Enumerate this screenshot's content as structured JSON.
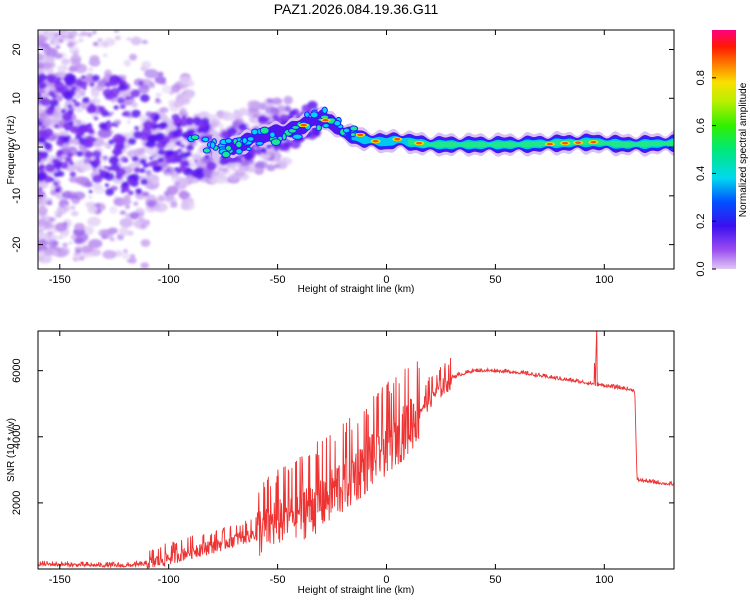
{
  "chart_data": [
    {
      "type": "heatmap",
      "title": "PAZ1.2026.084.19.36.G11",
      "xlabel": "Height of straight line (km)",
      "ylabel": "Frequency (Hz)",
      "xlim": [
        -160,
        132
      ],
      "ylim": [
        -25,
        24
      ],
      "xticks": [
        -150,
        -100,
        -50,
        0,
        50,
        100
      ],
      "yticks": [
        -20,
        -10,
        0,
        10,
        20
      ],
      "colorbar": {
        "label": "Normalized spectral amplitude",
        "range": [
          0,
          1
        ],
        "ticks": [
          "0.0",
          "0.2",
          "0.4",
          "0.6",
          "0.8"
        ],
        "colormap": "hsv-rainbow (violet to red)"
      },
      "ridge": [
        {
          "x": -150,
          "y": 3
        },
        {
          "x": -120,
          "y": 2
        },
        {
          "x": -100,
          "y": 1
        },
        {
          "x": -85,
          "y": 0
        },
        {
          "x": -70,
          "y": 0
        },
        {
          "x": -60,
          "y": 2
        },
        {
          "x": -50,
          "y": 3
        },
        {
          "x": -40,
          "y": 4
        },
        {
          "x": -30,
          "y": 6
        },
        {
          "x": -25,
          "y": 5
        },
        {
          "x": -20,
          "y": 3
        },
        {
          "x": -10,
          "y": 1.5
        },
        {
          "x": 0,
          "y": 1
        },
        {
          "x": 5,
          "y": 1.5
        },
        {
          "x": 10,
          "y": 1
        },
        {
          "x": 20,
          "y": 0.5
        },
        {
          "x": 40,
          "y": 0.5
        },
        {
          "x": 60,
          "y": 0.5
        },
        {
          "x": 80,
          "y": 0.8
        },
        {
          "x": 95,
          "y": 1
        },
        {
          "x": 110,
          "y": 0.5
        },
        {
          "x": 132,
          "y": 0.8
        }
      ]
    },
    {
      "type": "line",
      "title": "",
      "xlabel": "Height of straight line (km)",
      "ylabel": "SNR (10 * v/v)",
      "xlim": [
        -160,
        132
      ],
      "ylim": [
        0,
        7200
      ],
      "xticks": [
        -150,
        -100,
        -50,
        0,
        50,
        100
      ],
      "yticks": [
        2000,
        4000,
        6000
      ],
      "series": [
        {
          "name": "SNR",
          "color": "#ee3333",
          "points": [
            {
              "x": -160,
              "y": 150
            },
            {
              "x": -140,
              "y": 120
            },
            {
              "x": -120,
              "y": 100
            },
            {
              "x": -110,
              "y": 150
            },
            {
              "x": -100,
              "y": 350
            },
            {
              "x": -90,
              "y": 550
            },
            {
              "x": -80,
              "y": 700
            },
            {
              "x": -70,
              "y": 900
            },
            {
              "x": -60,
              "y": 1100
            },
            {
              "x": -50,
              "y": 1500
            },
            {
              "x": -40,
              "y": 1800
            },
            {
              "x": -30,
              "y": 2100
            },
            {
              "x": -20,
              "y": 2600
            },
            {
              "x": -10,
              "y": 3200
            },
            {
              "x": 0,
              "y": 3800
            },
            {
              "x": 10,
              "y": 4400
            },
            {
              "x": 20,
              "y": 5200
            },
            {
              "x": 30,
              "y": 5800
            },
            {
              "x": 40,
              "y": 6000
            },
            {
              "x": 50,
              "y": 6000
            },
            {
              "x": 60,
              "y": 5950
            },
            {
              "x": 70,
              "y": 5850
            },
            {
              "x": 80,
              "y": 5750
            },
            {
              "x": 90,
              "y": 5650
            },
            {
              "x": 100,
              "y": 5550
            },
            {
              "x": 110,
              "y": 5450
            },
            {
              "x": 114,
              "y": 5400
            },
            {
              "x": 115,
              "y": 2700
            },
            {
              "x": 120,
              "y": 2650
            },
            {
              "x": 132,
              "y": 2550
            }
          ]
        }
      ]
    }
  ]
}
